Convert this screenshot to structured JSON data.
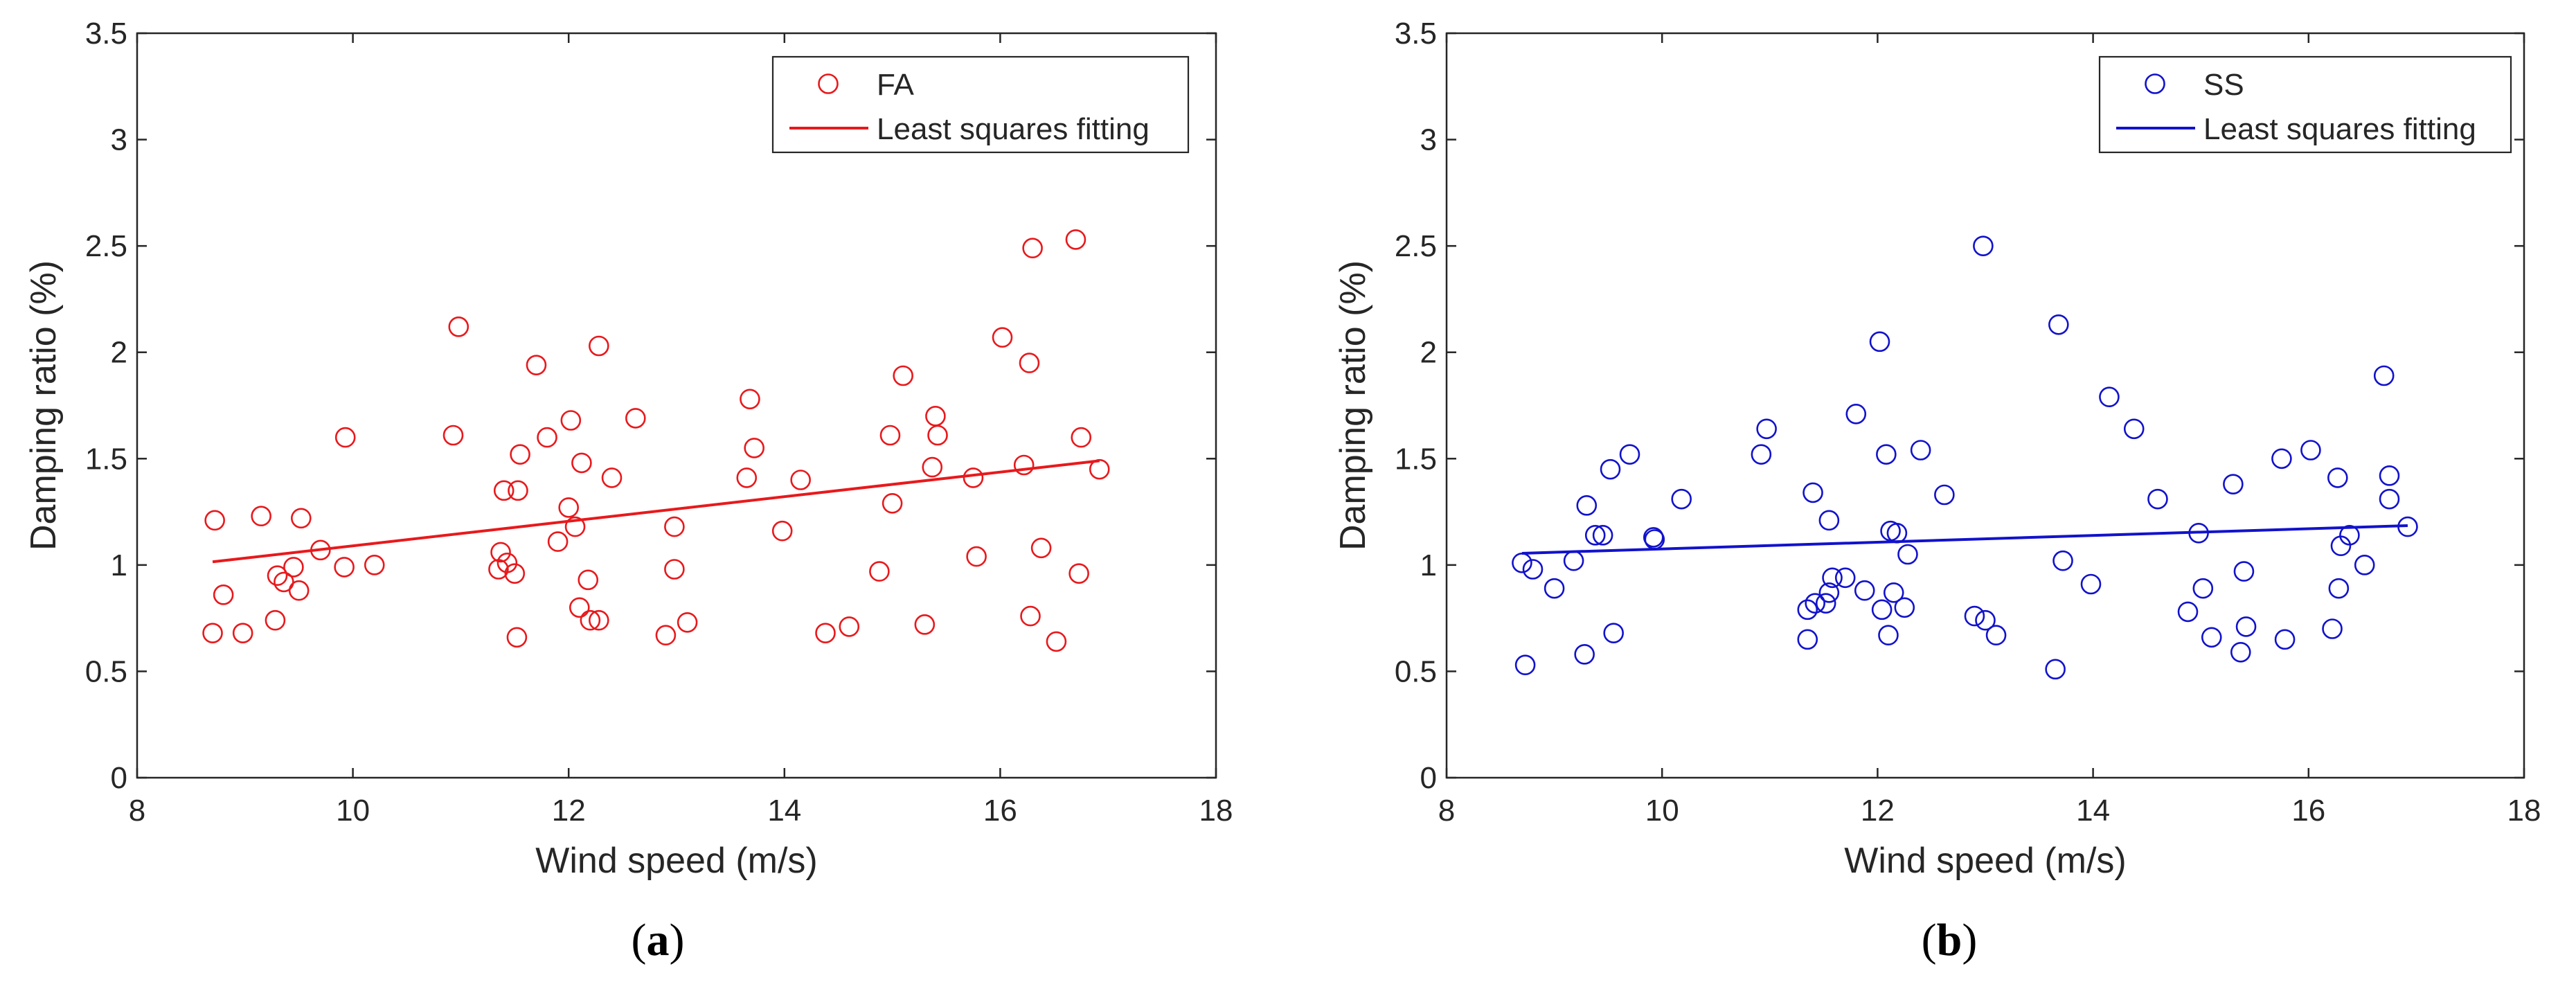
{
  "chart_data": [
    {
      "type": "scatter",
      "caption_open": "(",
      "caption_letter": "a",
      "caption_close": ")",
      "xlabel": "Wind speed (m/s)",
      "ylabel": "Damping ratio (%)",
      "xlim": [
        8,
        18
      ],
      "ylim": [
        0,
        3.5
      ],
      "xticks": [
        "8",
        "10",
        "12",
        "14",
        "16",
        "18"
      ],
      "yticks": [
        "0",
        "0.5",
        "1",
        "1.5",
        "2",
        "2.5",
        "3",
        "3.5"
      ],
      "legend_position": "top-right",
      "color": "#e8191c",
      "series": [
        {
          "name": "FA",
          "kind": "markers",
          "points": [
            [
              8.7,
              0.68
            ],
            [
              8.72,
              1.21
            ],
            [
              8.8,
              0.86
            ],
            [
              8.98,
              0.68
            ],
            [
              9.15,
              1.23
            ],
            [
              9.28,
              0.74
            ],
            [
              9.3,
              0.95
            ],
            [
              9.36,
              0.92
            ],
            [
              9.45,
              0.99
            ],
            [
              9.5,
              0.88
            ],
            [
              9.52,
              1.22
            ],
            [
              9.7,
              1.07
            ],
            [
              9.92,
              0.99
            ],
            [
              9.93,
              1.6
            ],
            [
              10.2,
              1.0
            ],
            [
              10.93,
              1.61
            ],
            [
              10.98,
              2.12
            ],
            [
              11.35,
              0.98
            ],
            [
              11.37,
              1.06
            ],
            [
              11.4,
              1.35
            ],
            [
              11.43,
              1.01
            ],
            [
              11.5,
              0.96
            ],
            [
              11.52,
              0.66
            ],
            [
              11.53,
              1.35
            ],
            [
              11.55,
              1.52
            ],
            [
              11.7,
              1.94
            ],
            [
              11.8,
              1.6
            ],
            [
              11.9,
              1.11
            ],
            [
              12.0,
              1.27
            ],
            [
              12.02,
              1.68
            ],
            [
              12.06,
              1.18
            ],
            [
              12.1,
              0.8
            ],
            [
              12.12,
              1.48
            ],
            [
              12.18,
              0.93
            ],
            [
              12.2,
              0.74
            ],
            [
              12.28,
              0.74
            ],
            [
              12.28,
              2.03
            ],
            [
              12.4,
              1.41
            ],
            [
              12.62,
              1.69
            ],
            [
              12.9,
              0.67
            ],
            [
              12.98,
              1.18
            ],
            [
              12.98,
              0.98
            ],
            [
              13.1,
              0.73
            ],
            [
              13.65,
              1.41
            ],
            [
              13.68,
              1.78
            ],
            [
              13.72,
              1.55
            ],
            [
              13.98,
              1.16
            ],
            [
              14.15,
              1.4
            ],
            [
              14.38,
              0.68
            ],
            [
              14.6,
              0.71
            ],
            [
              14.88,
              0.97
            ],
            [
              14.98,
              1.61
            ],
            [
              15.0,
              1.29
            ],
            [
              15.1,
              1.89
            ],
            [
              15.3,
              0.72
            ],
            [
              15.37,
              1.46
            ],
            [
              15.4,
              1.7
            ],
            [
              15.42,
              1.61
            ],
            [
              15.75,
              1.41
            ],
            [
              15.78,
              1.04
            ],
            [
              16.02,
              2.07
            ],
            [
              16.22,
              1.47
            ],
            [
              16.27,
              1.95
            ],
            [
              16.28,
              0.76
            ],
            [
              16.3,
              2.49
            ],
            [
              16.38,
              1.08
            ],
            [
              16.52,
              0.64
            ],
            [
              16.7,
              2.53
            ],
            [
              16.73,
              0.96
            ],
            [
              16.75,
              1.6
            ],
            [
              16.92,
              1.45
            ]
          ]
        },
        {
          "name": "Least squares fitting",
          "kind": "line",
          "x": [
            8.7,
            16.92
          ],
          "y": [
            1.015,
            1.49
          ]
        }
      ]
    },
    {
      "type": "scatter",
      "caption_open": "(",
      "caption_letter": "b",
      "caption_close": ")",
      "xlabel": "Wind speed (m/s)",
      "ylabel": "Damping ratio (%)",
      "xlim": [
        8,
        18
      ],
      "ylim": [
        0,
        3.5
      ],
      "xticks": [
        "8",
        "10",
        "12",
        "14",
        "16",
        "18"
      ],
      "yticks": [
        "0",
        "0.5",
        "1",
        "1.5",
        "2",
        "2.5",
        "3",
        "3.5"
      ],
      "legend_position": "top-right",
      "color": "#1212cc",
      "series": [
        {
          "name": "SS",
          "kind": "markers",
          "points": [
            [
              8.7,
              1.01
            ],
            [
              8.73,
              0.53
            ],
            [
              8.8,
              0.98
            ],
            [
              9.0,
              0.89
            ],
            [
              9.18,
              1.02
            ],
            [
              9.28,
              0.58
            ],
            [
              9.3,
              1.28
            ],
            [
              9.38,
              1.14
            ],
            [
              9.45,
              1.14
            ],
            [
              9.52,
              1.45
            ],
            [
              9.55,
              0.68
            ],
            [
              9.7,
              1.52
            ],
            [
              9.92,
              1.13
            ],
            [
              9.93,
              1.12
            ],
            [
              10.18,
              1.31
            ],
            [
              10.92,
              1.52
            ],
            [
              10.97,
              1.64
            ],
            [
              11.35,
              0.65
            ],
            [
              11.35,
              0.79
            ],
            [
              11.4,
              1.34
            ],
            [
              11.42,
              0.82
            ],
            [
              11.52,
              0.82
            ],
            [
              11.55,
              0.87
            ],
            [
              11.55,
              1.21
            ],
            [
              11.58,
              0.94
            ],
            [
              11.7,
              0.94
            ],
            [
              11.8,
              1.71
            ],
            [
              11.88,
              0.88
            ],
            [
              12.02,
              2.05
            ],
            [
              12.04,
              0.79
            ],
            [
              12.08,
              1.52
            ],
            [
              12.1,
              0.67
            ],
            [
              12.12,
              1.16
            ],
            [
              12.15,
              0.87
            ],
            [
              12.18,
              1.15
            ],
            [
              12.25,
              0.8
            ],
            [
              12.28,
              1.05
            ],
            [
              12.4,
              1.54
            ],
            [
              12.62,
              1.33
            ],
            [
              12.9,
              0.76
            ],
            [
              12.98,
              2.5
            ],
            [
              13.0,
              0.74
            ],
            [
              13.1,
              0.67
            ],
            [
              13.65,
              0.51
            ],
            [
              13.68,
              2.13
            ],
            [
              13.72,
              1.02
            ],
            [
              13.98,
              0.91
            ],
            [
              14.15,
              1.79
            ],
            [
              14.38,
              1.64
            ],
            [
              14.6,
              1.31
            ],
            [
              14.88,
              0.78
            ],
            [
              14.98,
              1.15
            ],
            [
              15.02,
              0.89
            ],
            [
              15.1,
              0.66
            ],
            [
              15.3,
              1.38
            ],
            [
              15.37,
              0.59
            ],
            [
              15.4,
              0.97
            ],
            [
              15.42,
              0.71
            ],
            [
              15.75,
              1.5
            ],
            [
              15.78,
              0.65
            ],
            [
              16.02,
              1.54
            ],
            [
              16.22,
              0.7
            ],
            [
              16.27,
              1.41
            ],
            [
              16.28,
              0.89
            ],
            [
              16.3,
              1.09
            ],
            [
              16.38,
              1.14
            ],
            [
              16.52,
              1.0
            ],
            [
              16.7,
              1.89
            ],
            [
              16.75,
              1.31
            ],
            [
              16.75,
              1.42
            ],
            [
              16.92,
              1.18
            ]
          ]
        },
        {
          "name": "Least squares fitting",
          "kind": "line",
          "x": [
            8.7,
            16.92
          ],
          "y": [
            1.055,
            1.185
          ]
        }
      ]
    }
  ]
}
